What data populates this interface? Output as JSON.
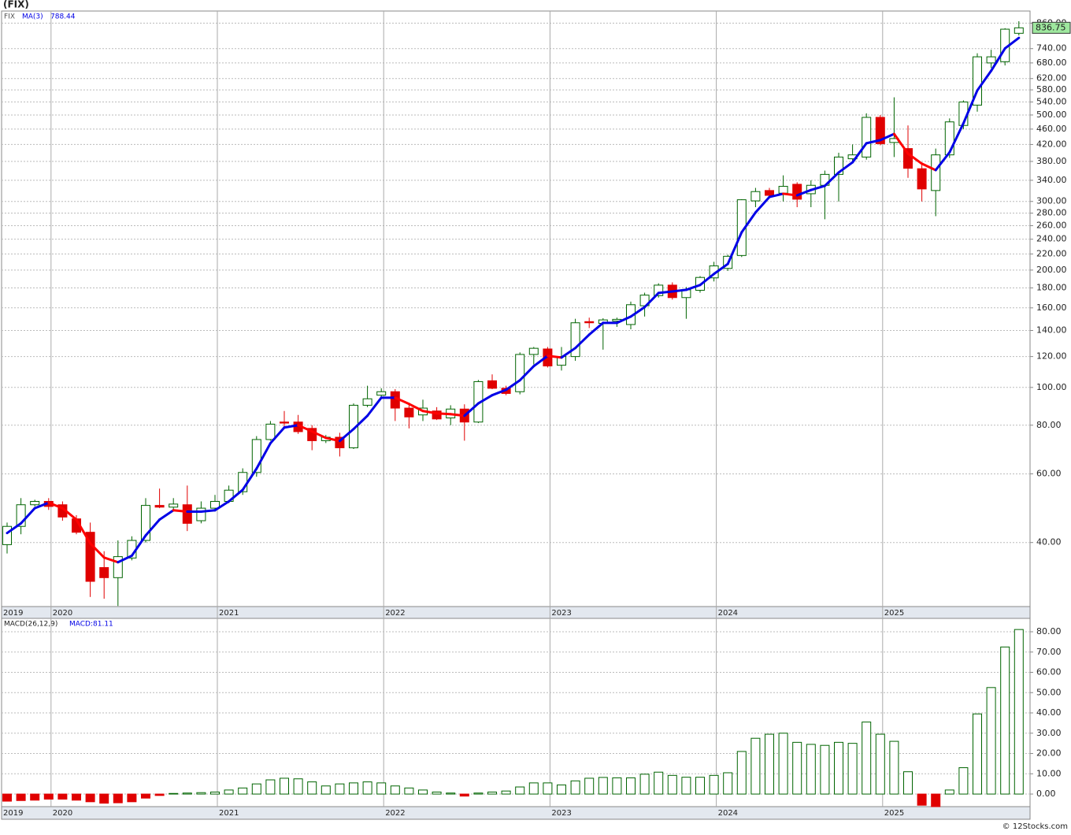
{
  "header": {
    "title": "(FIX)",
    "footer": "© 12Stocks.com"
  },
  "chart_data": [
    {
      "type": "candlestick",
      "symbol": "FIX",
      "log_scale": true,
      "grid": true,
      "categories": [
        "2019",
        null,
        null,
        "2020",
        null,
        null,
        null,
        null,
        null,
        null,
        null,
        null,
        null,
        null,
        null,
        "2021",
        null,
        null,
        null,
        null,
        null,
        null,
        null,
        null,
        null,
        null,
        null,
        "2022",
        null,
        null,
        null,
        null,
        null,
        null,
        null,
        null,
        null,
        null,
        null,
        "2023",
        null,
        null,
        null,
        null,
        null,
        null,
        null,
        null,
        null,
        null,
        null,
        "2024",
        null,
        null,
        null,
        null,
        null,
        null,
        null,
        null,
        null,
        null,
        null,
        "2025",
        null,
        null,
        null,
        null,
        null,
        null,
        null,
        null,
        null,
        null
      ],
      "open": [
        39.5,
        44,
        50,
        51,
        50,
        46,
        42.5,
        34.5,
        32.5,
        36.5,
        40.5,
        49.8,
        49.3,
        50,
        45.5,
        49,
        51,
        54,
        60.5,
        73.5,
        81.5,
        81.5,
        78.5,
        73,
        74.5,
        70,
        90,
        95.5,
        97.5,
        88.5,
        85,
        87,
        83.5,
        88,
        81.5,
        104,
        99.5,
        97.5,
        121.5,
        125.5,
        114,
        120,
        147.5,
        146,
        148,
        145,
        162,
        172,
        183,
        170,
        177.5,
        191,
        202,
        218,
        301,
        320,
        315,
        332,
        314,
        330,
        352,
        386,
        390,
        493,
        425,
        410,
        364,
        320,
        395,
        470,
        530,
        680,
        685,
        810
      ],
      "high": [
        45,
        52,
        51.5,
        52,
        51,
        47,
        45,
        38,
        40.5,
        41.5,
        52,
        55,
        52,
        56,
        51,
        53,
        56,
        62,
        75,
        82,
        87,
        85,
        80,
        75.5,
        76.5,
        91,
        101,
        99.5,
        99,
        90.5,
        93,
        89,
        90,
        90.5,
        104.5,
        108,
        101,
        123,
        127,
        127,
        127,
        150,
        151,
        150.5,
        151,
        166,
        175,
        185,
        186,
        181,
        193,
        210,
        219,
        304,
        325,
        325,
        350,
        336,
        340,
        360,
        400,
        420,
        505,
        500,
        555,
        470,
        378,
        410,
        490,
        545,
        720,
        735,
        835,
        870
      ],
      "low": [
        37.5,
        42,
        49.5,
        48.5,
        45.5,
        42,
        29,
        28.7,
        27.5,
        36,
        40,
        49,
        48,
        42.8,
        44.8,
        48,
        50.5,
        53,
        59,
        73,
        79,
        76,
        69,
        72,
        66.5,
        69.5,
        89,
        94,
        82,
        78.5,
        82,
        82.5,
        80,
        73,
        81,
        99,
        95.5,
        96,
        114.5,
        112.5,
        110.5,
        117,
        142,
        125,
        143,
        141,
        152,
        170,
        168,
        150,
        175,
        187,
        199,
        216,
        290,
        307,
        300,
        290,
        290,
        270,
        300,
        380,
        384,
        418,
        390,
        345,
        300,
        275,
        388,
        460,
        510,
        660,
        670,
        800
      ],
      "close": [
        44,
        50,
        51,
        49.5,
        46.5,
        42.5,
        31.8,
        32.5,
        36.8,
        40.5,
        49.8,
        49.3,
        50.2,
        44.8,
        49,
        51,
        54.5,
        60.5,
        73.5,
        80.5,
        81,
        77,
        73,
        74.5,
        70,
        90,
        93.5,
        97.5,
        88.5,
        84,
        88.5,
        83,
        88,
        81.5,
        103.5,
        99.5,
        96.5,
        121.5,
        126,
        113.5,
        120,
        146.5,
        146.5,
        149,
        149.5,
        163,
        172.5,
        183,
        170,
        178,
        191.5,
        205,
        217,
        303,
        318,
        311,
        328,
        304,
        330,
        352,
        390,
        395,
        493,
        422,
        435,
        365,
        323,
        395,
        480,
        540,
        705,
        705,
        830,
        836.75
      ],
      "ma": {
        "name": "MA(3)",
        "values": [
          42.3,
          44.8,
          49,
          50.6,
          49,
          45.8,
          39.8,
          36.6,
          35.6,
          37,
          41.7,
          45.8,
          48.4,
          48,
          48,
          48.4,
          51,
          54.6,
          61.9,
          71.9,
          78.9,
          80,
          77.1,
          74.2,
          72.9,
          78.2,
          84.6,
          94.1,
          94.1,
          90.7,
          87,
          85.8,
          85.4,
          84.6,
          91,
          95.5,
          98.6,
          104.3,
          113.4,
          120.5,
          119.3,
          126.2,
          136.6,
          146.4,
          146.4,
          152,
          160.7,
          174.7,
          176.3,
          178,
          183.1,
          195.5,
          207.4,
          250,
          281,
          308,
          314,
          311,
          321,
          329,
          356,
          378,
          423,
          431,
          447,
          398,
          375,
          361,
          401,
          476,
          578,
          649,
          741,
          788.44
        ],
        "up_color": "#0000e6",
        "down_color": "#ff0000"
      },
      "up_color": "#006400",
      "down_color": "#e00000",
      "ylim": [
        27.4,
        924
      ],
      "yticks": [
        {
          "value": 40,
          "label": "40.00"
        },
        {
          "value": 60,
          "label": "60.00"
        },
        {
          "value": 80,
          "label": "80.00"
        },
        {
          "value": 100,
          "label": "100.00"
        },
        {
          "value": 120,
          "label": "120.00"
        },
        {
          "value": 140,
          "label": "140.00"
        },
        {
          "value": 160,
          "label": "160.00"
        },
        {
          "value": 180,
          "label": "180.00"
        },
        {
          "value": 200,
          "label": "200.00"
        },
        {
          "value": 220,
          "label": "220.00"
        },
        {
          "value": 240,
          "label": "240.00"
        },
        {
          "value": 260,
          "label": "260.00"
        },
        {
          "value": 280,
          "label": "280.00"
        },
        {
          "value": 300,
          "label": "300.00"
        },
        {
          "value": 340,
          "label": "340.00"
        },
        {
          "value": 380,
          "label": "380.00"
        },
        {
          "value": 420,
          "label": "420.00"
        },
        {
          "value": 460,
          "label": "460.00"
        },
        {
          "value": 500,
          "label": "500.00"
        },
        {
          "value": 540,
          "label": "540.00"
        },
        {
          "value": 580,
          "label": "580.00"
        },
        {
          "value": 620,
          "label": "620.00"
        },
        {
          "value": 680,
          "label": "680.00"
        },
        {
          "value": 740,
          "label": "740.00"
        },
        {
          "value": 860,
          "label": "860.00"
        }
      ]
    },
    {
      "type": "bar",
      "title": "MACD(26,12,9)",
      "last_value_label": "MACD:81.11",
      "grid": true,
      "values": [
        -3.5,
        -3.2,
        -3,
        -2.5,
        -2.5,
        -3,
        -3.8,
        -4.5,
        -4.3,
        -3.8,
        -2,
        -0.7,
        0.3,
        0.5,
        0.7,
        1,
        2,
        3,
        5,
        7,
        7.8,
        7.5,
        6,
        4,
        5,
        5.5,
        6,
        5.5,
        4,
        3,
        2,
        1,
        0.5,
        -1,
        0.5,
        1,
        1.5,
        3.5,
        5.5,
        5.5,
        4.5,
        6.5,
        7.8,
        8.2,
        8,
        8,
        9.8,
        10.8,
        9.2,
        8.3,
        8.3,
        9.2,
        10.5,
        21,
        27.5,
        29.5,
        30,
        25.5,
        24.5,
        24,
        25.5,
        25,
        35.5,
        29.5,
        26,
        11,
        -5.5,
        -6.2,
        2,
        13,
        39.5,
        52.5,
        72.5,
        81.11
      ],
      "pos_color": "#006400",
      "neg_color": "#e00000",
      "ylim": [
        -6.2,
        86.6
      ],
      "yticks": [
        {
          "value": 0,
          "label": "0.00"
        },
        {
          "value": 10,
          "label": "10.00"
        },
        {
          "value": 20,
          "label": "20.00"
        },
        {
          "value": 30,
          "label": "30.00"
        },
        {
          "value": 40,
          "label": "40.00"
        },
        {
          "value": 50,
          "label": "50.00"
        },
        {
          "value": 60,
          "label": "60.00"
        },
        {
          "value": 70,
          "label": "70.00"
        },
        {
          "value": 80,
          "label": "80.00"
        }
      ]
    }
  ]
}
